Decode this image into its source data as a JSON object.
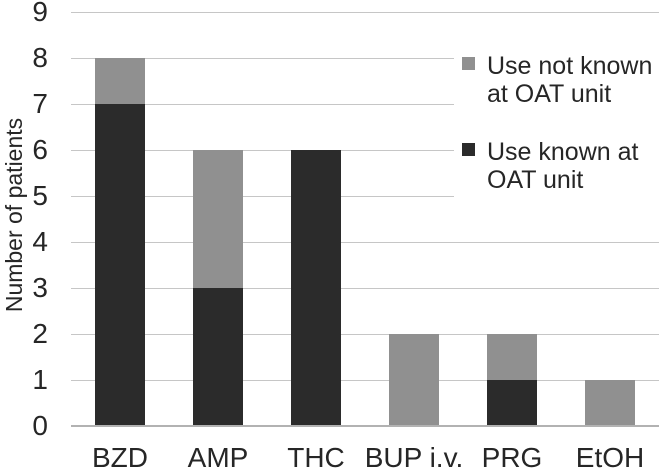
{
  "chart_data": {
    "type": "bar",
    "stacked": true,
    "orientation": "vertical",
    "title": "",
    "xlabel": "",
    "ylabel": "Number of patients",
    "categories": [
      "BZD",
      "AMP",
      "THC",
      "BUP i.v.",
      "PRG",
      "EtOH"
    ],
    "series": [
      {
        "name": "Use known at OAT unit",
        "color": "#2b2b2b",
        "values": [
          7,
          3,
          6,
          0,
          1,
          0
        ]
      },
      {
        "name": "Use not known at OAT unit",
        "color": "#909090",
        "values": [
          1,
          3,
          0,
          2,
          1,
          1
        ]
      }
    ],
    "totals": [
      8,
      6,
      6,
      2,
      2,
      1
    ],
    "ylim": [
      0,
      9
    ],
    "yticks": [
      0,
      1,
      2,
      3,
      4,
      5,
      6,
      7,
      8,
      9
    ],
    "grid": "horizontal",
    "legend": {
      "position": "upper-right",
      "entries": [
        {
          "label": "Use not known at OAT unit",
          "color": "#909090"
        },
        {
          "label": "Use known at OAT unit",
          "color": "#2b2b2b"
        }
      ]
    },
    "colors": {
      "gridline": "#c6c6c6",
      "axis_line": "#b2b2b2",
      "text": "#262626",
      "background": "#ffffff"
    }
  }
}
